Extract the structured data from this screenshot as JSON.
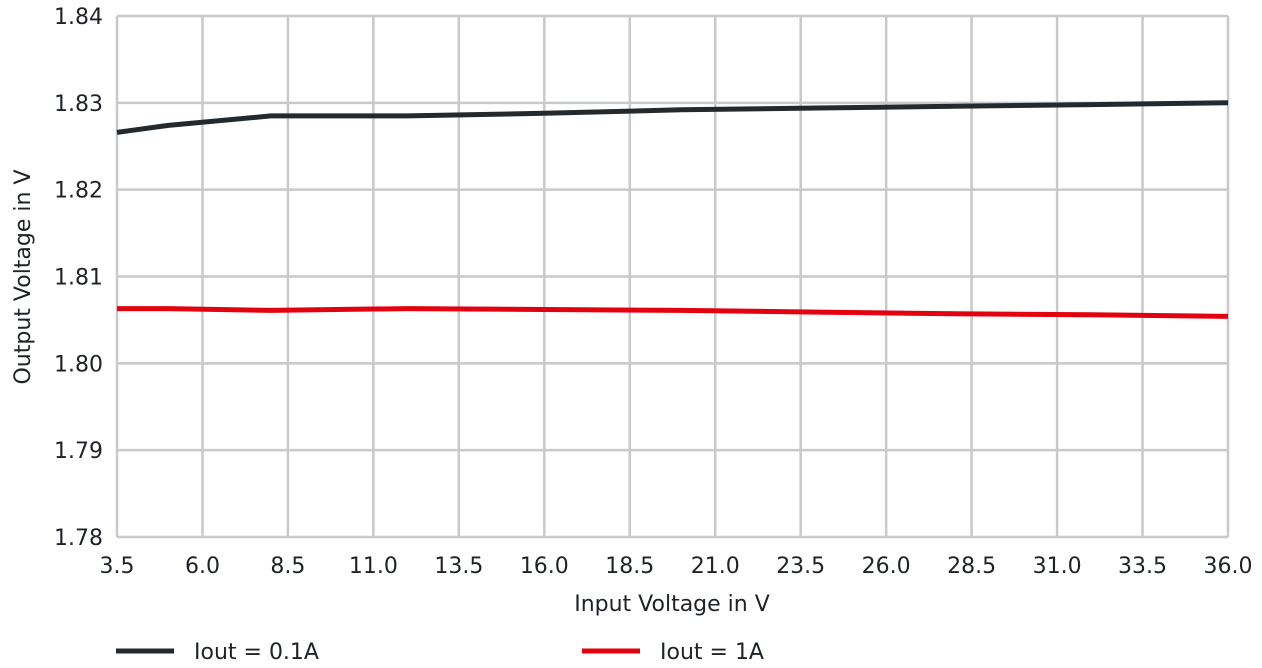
{
  "chart_data": {
    "type": "line",
    "title": "",
    "xlabel": "Input Voltage in V",
    "ylabel": "Output Voltage in V",
    "xlim": [
      3.5,
      36.0
    ],
    "ylim": [
      1.78,
      1.84
    ],
    "x_ticks": [
      3.5,
      6.0,
      8.5,
      11.0,
      13.5,
      16.0,
      18.5,
      21.0,
      23.5,
      26.0,
      28.5,
      31.0,
      33.5,
      36.0
    ],
    "x_tick_labels": [
      "3.5",
      "6.0",
      "8.5",
      "11.0",
      "13.5",
      "16.0",
      "18.5",
      "21.0",
      "23.5",
      "26.0",
      "28.5",
      "31.0",
      "33.5",
      "36.0"
    ],
    "y_ticks": [
      1.78,
      1.79,
      1.8,
      1.81,
      1.82,
      1.83,
      1.84
    ],
    "y_tick_labels": [
      "1.78",
      "1.79",
      "1.80",
      "1.81",
      "1.82",
      "1.83",
      "1.84"
    ],
    "grid": true,
    "legend_position": "bottom",
    "series": [
      {
        "name": "Iout = 0.1A",
        "color": "#23292d",
        "x": [
          3.5,
          5.0,
          8.0,
          12.0,
          16.0,
          20.0,
          24.0,
          28.0,
          32.0,
          36.0
        ],
        "y": [
          1.8266,
          1.8274,
          1.8285,
          1.8285,
          1.8288,
          1.8292,
          1.8294,
          1.8296,
          1.8298,
          1.83
        ]
      },
      {
        "name": "Iout = 1A",
        "color": "#e3000f",
        "x": [
          3.5,
          5.0,
          8.0,
          12.0,
          16.0,
          20.0,
          24.0,
          28.0,
          32.0,
          36.0
        ],
        "y": [
          1.8063,
          1.8063,
          1.8061,
          1.8063,
          1.8062,
          1.8061,
          1.8059,
          1.8057,
          1.8056,
          1.8054
        ]
      }
    ]
  }
}
